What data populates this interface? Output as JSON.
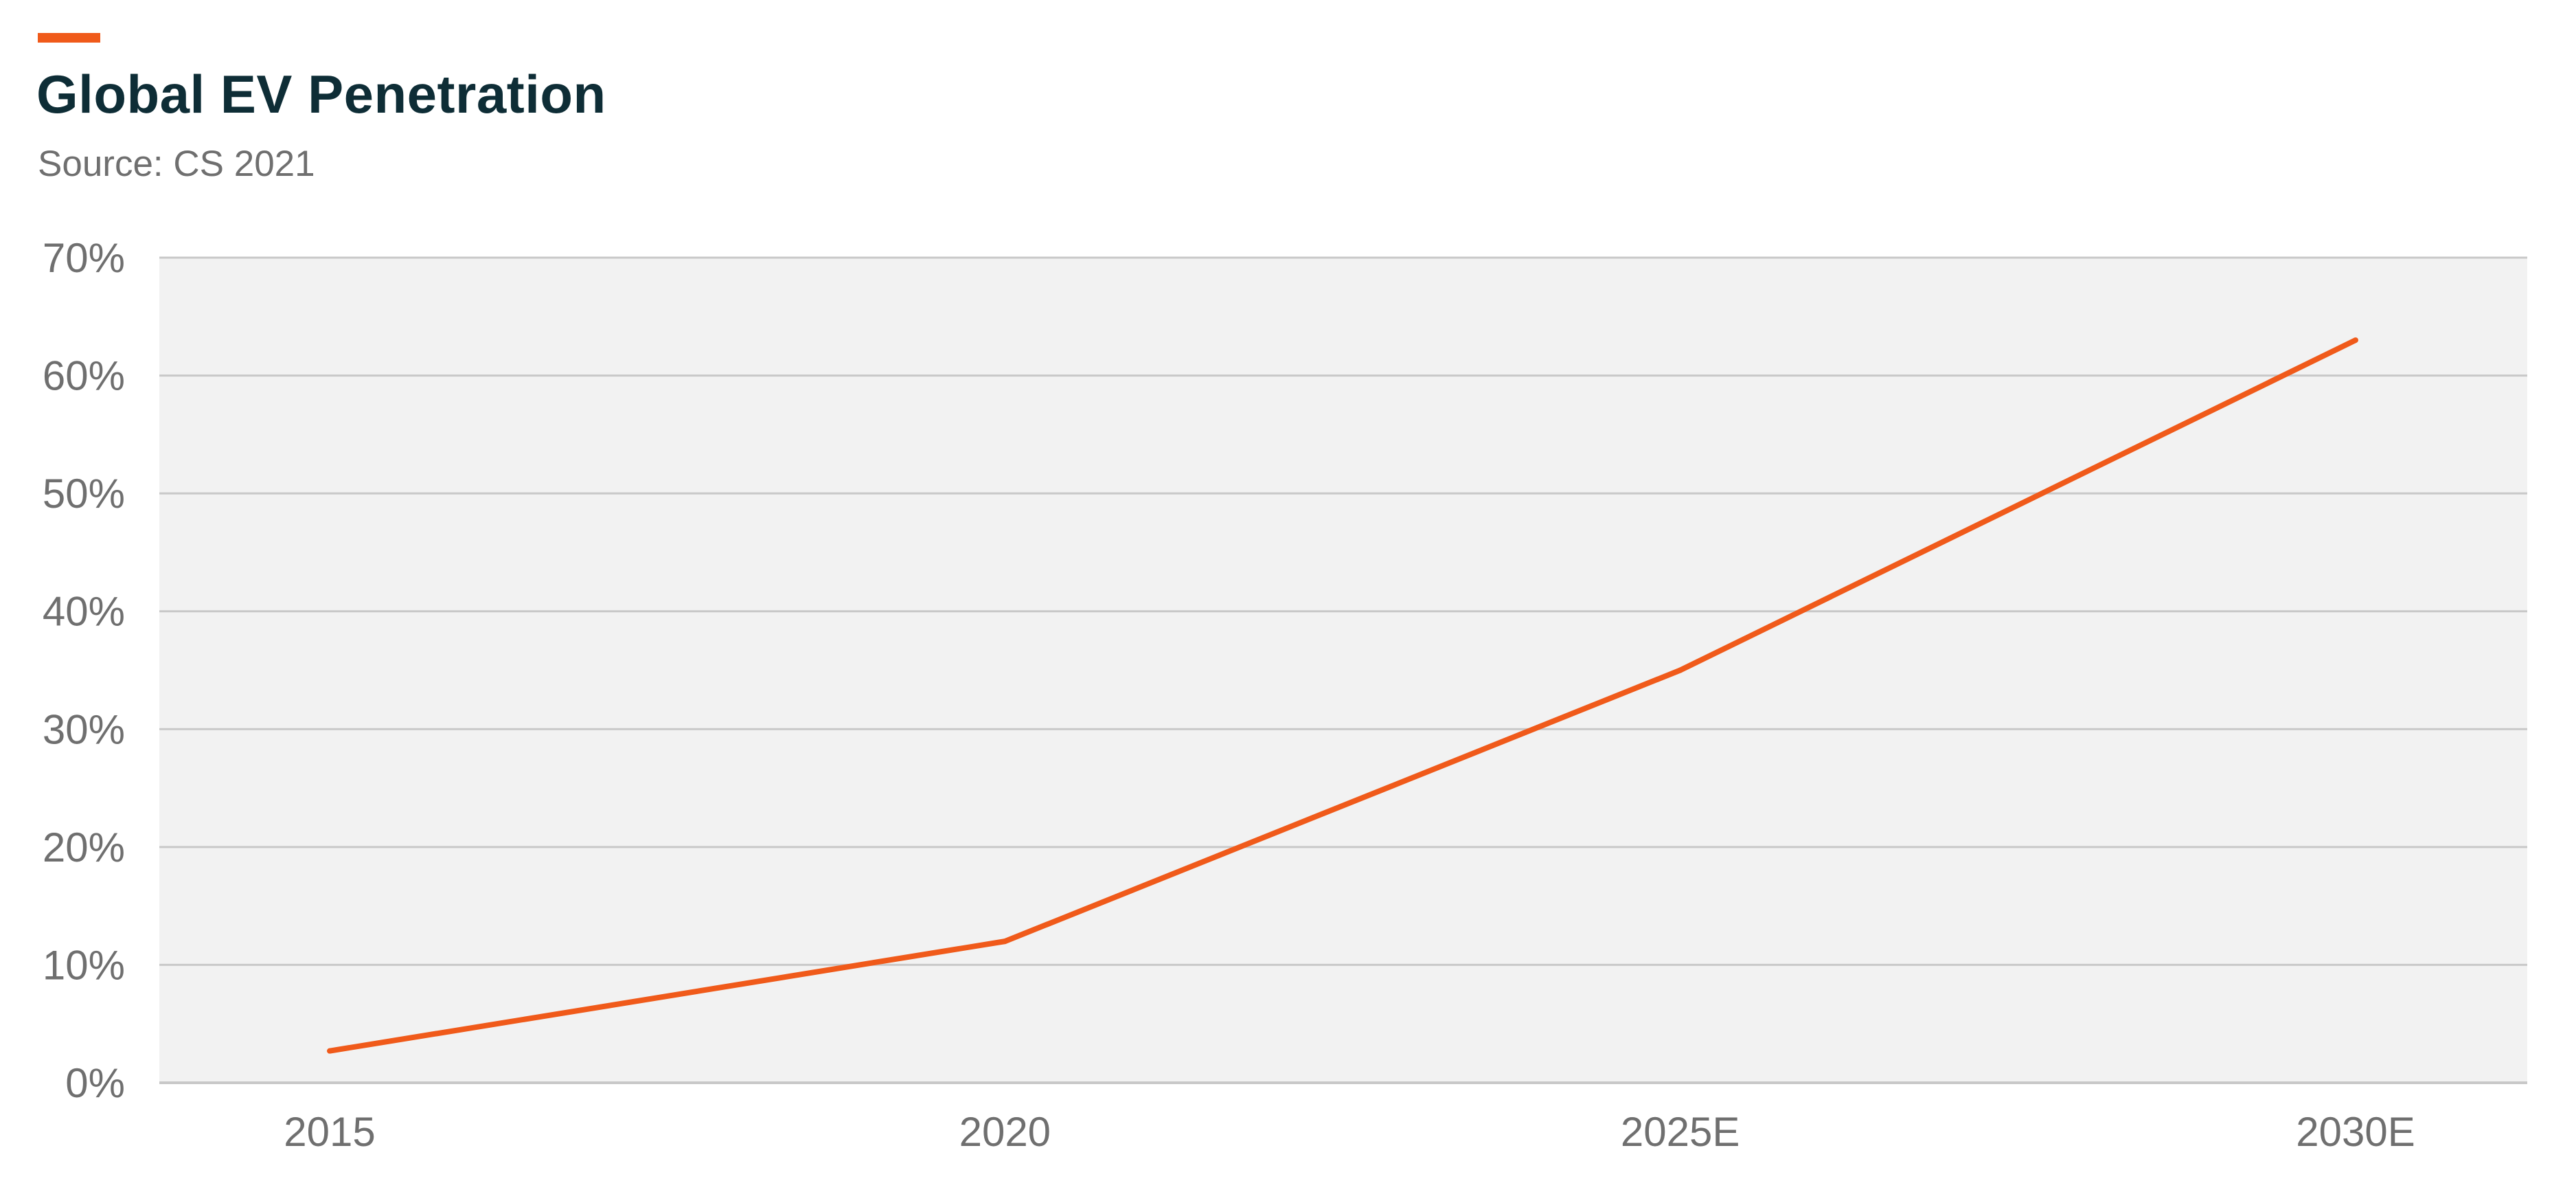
{
  "header": {
    "title": "Global EV Penetration",
    "subtitle": "Source: CS 2021"
  },
  "colors": {
    "accent": "#f05a1a",
    "line": "#f05a1a",
    "plot_background": "#f2f2f2",
    "gridline": "#c8c8c8",
    "title": "#0e2d36",
    "muted_text": "#6f6f6f"
  },
  "chart_data": {
    "type": "line",
    "title": "Global EV Penetration",
    "subtitle": "Source: CS 2021",
    "xlabel": "",
    "ylabel": "",
    "categories": [
      "2015",
      "2020",
      "2025E",
      "2030E"
    ],
    "series": [
      {
        "values": [
          2.7,
          12,
          35,
          63
        ]
      }
    ],
    "y_ticks": [
      "0%",
      "10%",
      "20%",
      "30%",
      "40%",
      "50%",
      "60%",
      "70%"
    ],
    "ylim": [
      0,
      70
    ],
    "y_unit": "%",
    "grid": "horizontal",
    "legend": "none"
  }
}
